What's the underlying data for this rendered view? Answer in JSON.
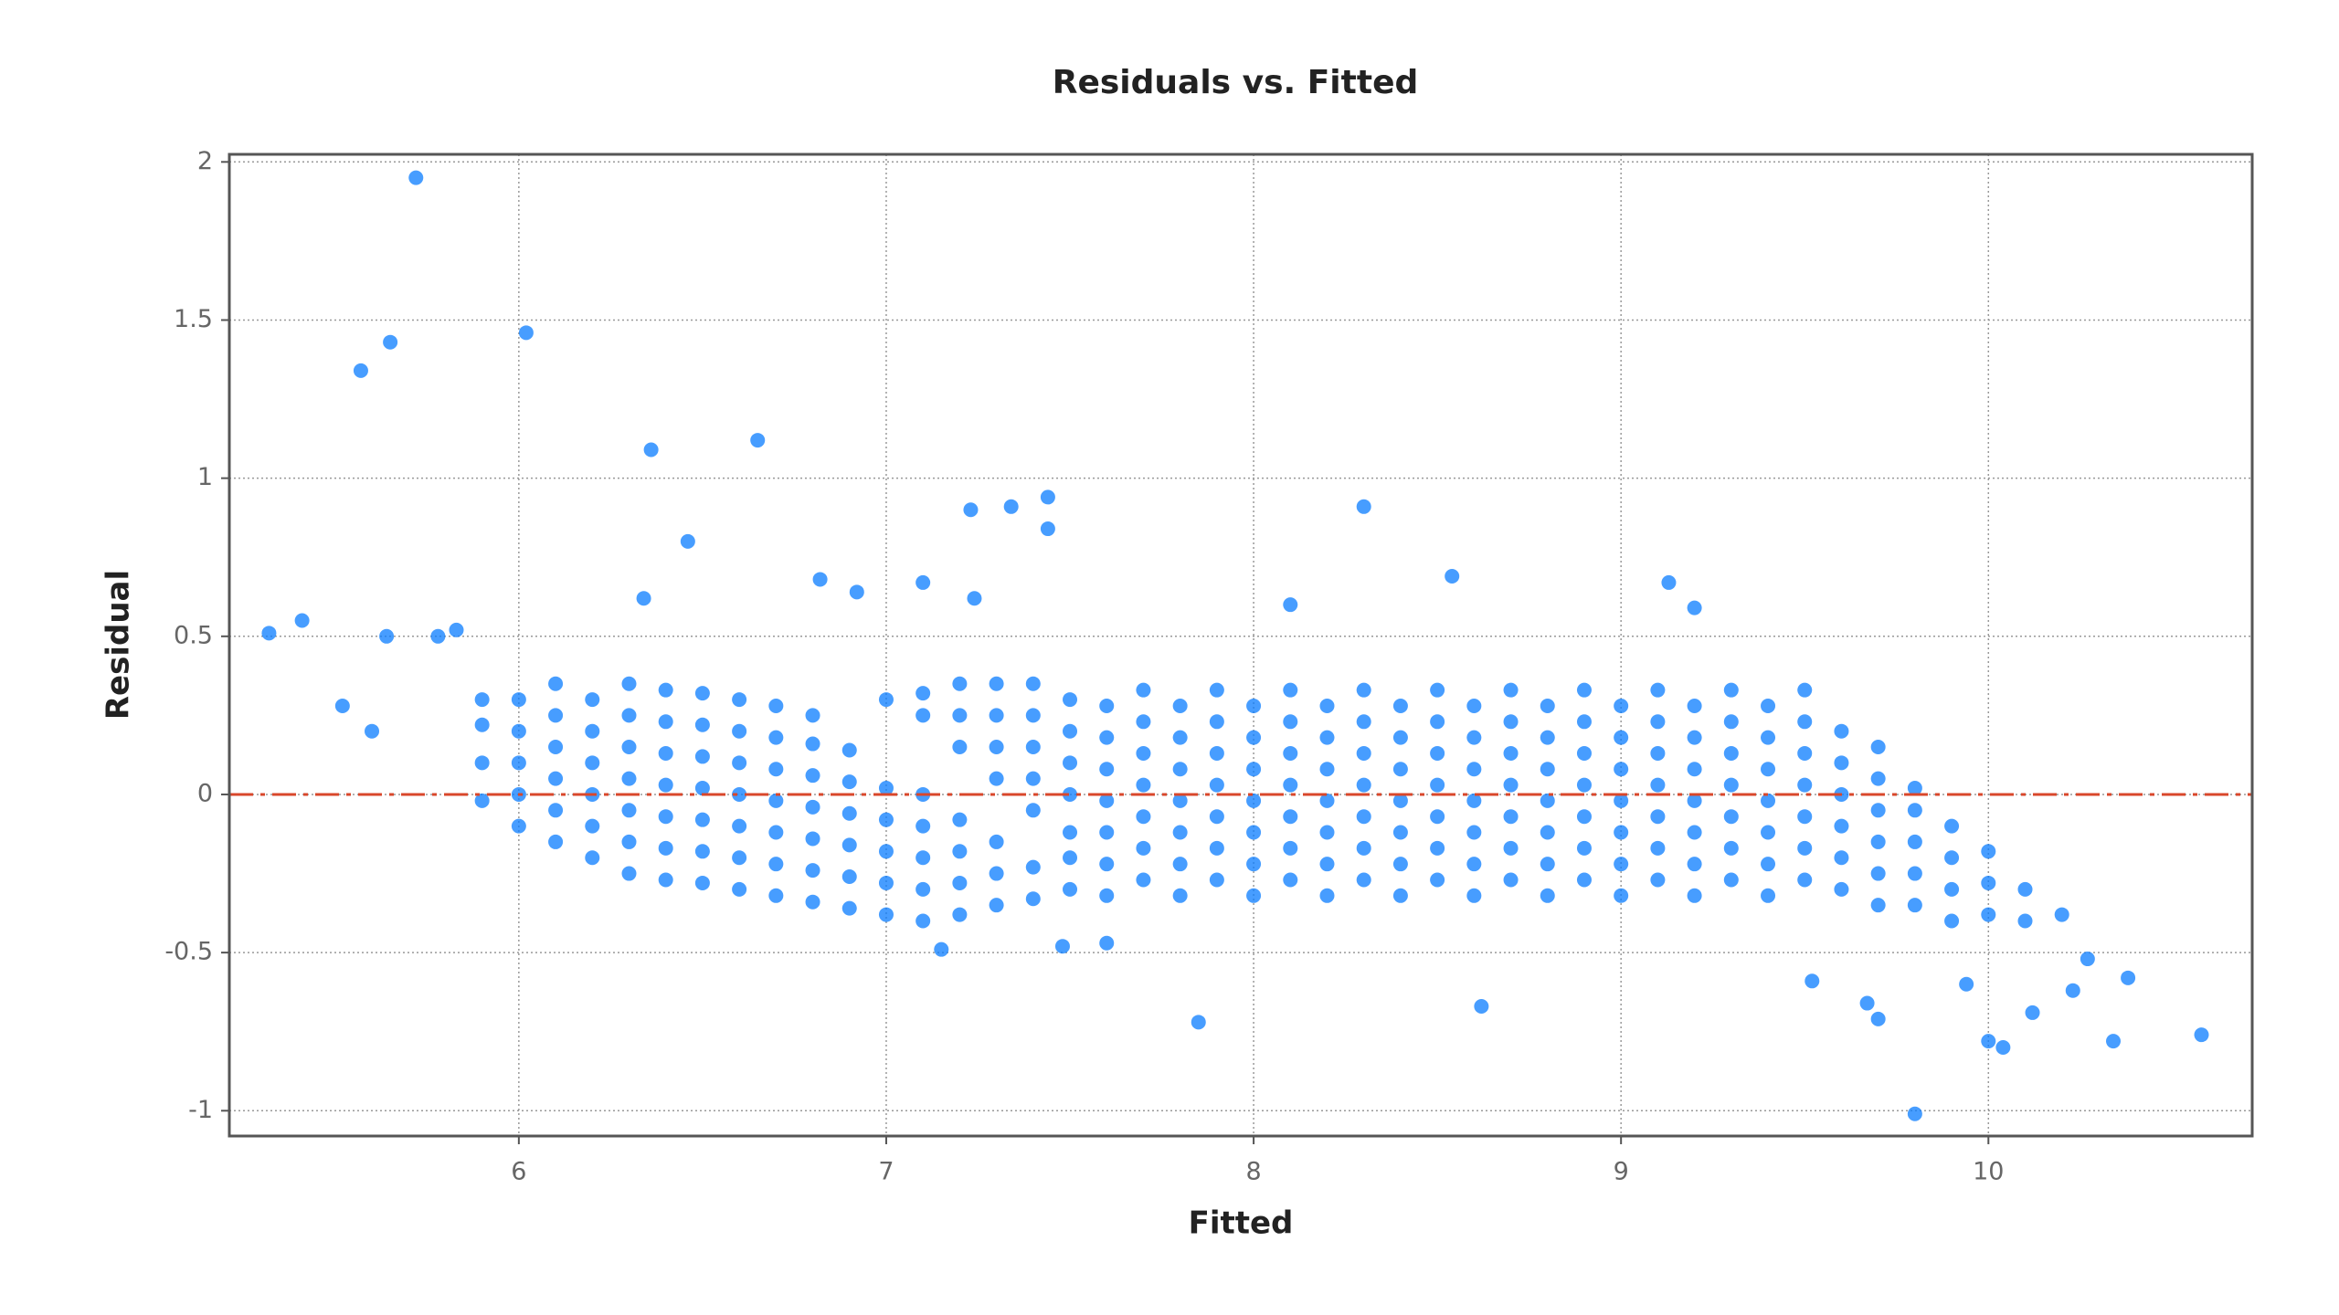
{
  "chart_data": {
    "type": "scatter",
    "title": "Residuals vs. Fitted",
    "x_label": "Fitted",
    "y_label": "Residual",
    "color": "#0a7cff",
    "grid": true,
    "reference_line": {
      "y": 0,
      "color": "#d9472b"
    },
    "xlim": [
      5.212,
      10.718
    ],
    "ylim": [
      -1.08,
      2.024
    ],
    "xticks": [
      6,
      7,
      8,
      9,
      10
    ],
    "yticks": [
      -1,
      -0.5,
      0,
      0.5,
      1,
      1.5,
      2
    ],
    "x": [
      5.32,
      5.41,
      5.57,
      5.65,
      5.72,
      6.02,
      6.36,
      6.65,
      6.46,
      6.34,
      6.82,
      6.92,
      7.1,
      7.23,
      7.34,
      7.44,
      7.44,
      7.24,
      8.3,
      8.54,
      8.1,
      7.85,
      8.62,
      9.13,
      9.2,
      5.52,
      5.6,
      5.64,
      5.78,
      5.83,
      9.8,
      10.58,
      10.34,
      10.38,
      10.0,
      10.04,
      9.67,
      9.7,
      9.52,
      10.23,
      10.27,
      10.12,
      9.94,
      7.15,
      7.48,
      7.6,
      5.9,
      5.9,
      5.9,
      5.9,
      6.0,
      6.0,
      6.0,
      6.0,
      6.0,
      6.1,
      6.1,
      6.1,
      6.1,
      6.1,
      6.1,
      6.2,
      6.2,
      6.2,
      6.2,
      6.2,
      6.2,
      6.3,
      6.3,
      6.3,
      6.3,
      6.3,
      6.3,
      6.3,
      6.4,
      6.4,
      6.4,
      6.4,
      6.4,
      6.4,
      6.4,
      6.5,
      6.5,
      6.5,
      6.5,
      6.5,
      6.5,
      6.5,
      6.6,
      6.6,
      6.6,
      6.6,
      6.6,
      6.6,
      6.6,
      6.7,
      6.7,
      6.7,
      6.7,
      6.7,
      6.7,
      6.7,
      6.8,
      6.8,
      6.8,
      6.8,
      6.8,
      6.8,
      6.8,
      6.9,
      6.9,
      6.9,
      6.9,
      6.9,
      6.9,
      7.0,
      7.0,
      7.0,
      7.0,
      7.0,
      7.0,
      7.1,
      7.1,
      7.1,
      7.1,
      7.1,
      7.1,
      7.1,
      7.2,
      7.2,
      7.2,
      7.2,
      7.2,
      7.2,
      7.2,
      7.3,
      7.3,
      7.3,
      7.3,
      7.3,
      7.3,
      7.3,
      7.4,
      7.4,
      7.4,
      7.4,
      7.4,
      7.4,
      7.4,
      7.5,
      7.5,
      7.5,
      7.5,
      7.5,
      7.5,
      7.5,
      7.6,
      7.6,
      7.6,
      7.6,
      7.6,
      7.6,
      7.6,
      7.7,
      7.7,
      7.7,
      7.7,
      7.7,
      7.7,
      7.7,
      7.8,
      7.8,
      7.8,
      7.8,
      7.8,
      7.8,
      7.8,
      7.9,
      7.9,
      7.9,
      7.9,
      7.9,
      7.9,
      7.9,
      8.0,
      8.0,
      8.0,
      8.0,
      8.0,
      8.0,
      8.0,
      8.1,
      8.1,
      8.1,
      8.1,
      8.1,
      8.1,
      8.1,
      8.2,
      8.2,
      8.2,
      8.2,
      8.2,
      8.2,
      8.2,
      8.3,
      8.3,
      8.3,
      8.3,
      8.3,
      8.3,
      8.3,
      8.4,
      8.4,
      8.4,
      8.4,
      8.4,
      8.4,
      8.4,
      8.5,
      8.5,
      8.5,
      8.5,
      8.5,
      8.5,
      8.5,
      8.6,
      8.6,
      8.6,
      8.6,
      8.6,
      8.6,
      8.6,
      8.7,
      8.7,
      8.7,
      8.7,
      8.7,
      8.7,
      8.7,
      8.8,
      8.8,
      8.8,
      8.8,
      8.8,
      8.8,
      8.8,
      8.9,
      8.9,
      8.9,
      8.9,
      8.9,
      8.9,
      8.9,
      9.0,
      9.0,
      9.0,
      9.0,
      9.0,
      9.0,
      9.0,
      9.1,
      9.1,
      9.1,
      9.1,
      9.1,
      9.1,
      9.1,
      9.2,
      9.2,
      9.2,
      9.2,
      9.2,
      9.2,
      9.2,
      9.3,
      9.3,
      9.3,
      9.3,
      9.3,
      9.3,
      9.3,
      9.4,
      9.4,
      9.4,
      9.4,
      9.4,
      9.4,
      9.4,
      9.5,
      9.5,
      9.5,
      9.5,
      9.5,
      9.5,
      9.5,
      9.6,
      9.6,
      9.6,
      9.6,
      9.6,
      9.6,
      9.7,
      9.7,
      9.7,
      9.7,
      9.7,
      9.7,
      9.8,
      9.8,
      9.8,
      9.8,
      9.8,
      9.9,
      9.9,
      9.9,
      9.9,
      10.0,
      10.0,
      10.0,
      10.1,
      10.1,
      10.2
    ],
    "values": [
      0.51,
      0.55,
      1.34,
      1.43,
      1.95,
      1.46,
      1.09,
      1.12,
      0.8,
      0.62,
      0.68,
      0.64,
      0.67,
      0.9,
      0.91,
      0.94,
      0.84,
      0.62,
      0.91,
      0.69,
      0.6,
      -0.72,
      -0.67,
      0.67,
      0.59,
      0.28,
      0.2,
      0.5,
      0.5,
      0.52,
      -1.01,
      -0.76,
      -0.78,
      -0.58,
      -0.78,
      -0.8,
      -0.66,
      -0.71,
      -0.59,
      -0.62,
      -0.52,
      -0.69,
      -0.6,
      -0.49,
      -0.48,
      -0.47,
      -0.02,
      0.1,
      0.22,
      0.3,
      -0.1,
      0,
      0.1,
      0.2,
      0.3,
      -0.15,
      -0.05,
      0.05,
      0.15,
      0.25,
      0.35,
      -0.2,
      -0.1,
      0,
      0.1,
      0.2,
      0.3,
      -0.25,
      -0.15,
      -0.05,
      0.05,
      0.15,
      0.25,
      0.35,
      -0.27,
      -0.17,
      -0.07,
      0.03,
      0.13,
      0.23,
      0.33,
      -0.28,
      -0.18,
      -0.08,
      0.02,
      0.12,
      0.22,
      0.32,
      -0.3,
      -0.2,
      -0.1,
      0,
      0.1,
      0.2,
      0.3,
      -0.32,
      -0.22,
      -0.12,
      -0.02,
      0.08,
      0.18,
      0.28,
      -0.34,
      -0.24,
      -0.14,
      -0.04,
      0.06,
      0.16,
      0.25,
      -0.36,
      -0.26,
      -0.16,
      -0.06,
      0.04,
      0.14,
      -0.38,
      -0.28,
      -0.18,
      -0.08,
      0.02,
      0.3,
      -0.4,
      -0.3,
      -0.2,
      -0.1,
      0,
      0.25,
      0.32,
      -0.38,
      -0.28,
      -0.18,
      -0.08,
      0.15,
      0.25,
      0.35,
      -0.35,
      -0.25,
      -0.15,
      0.05,
      0.15,
      0.25,
      0.35,
      -0.33,
      -0.23,
      -0.05,
      0.05,
      0.15,
      0.25,
      0.35,
      -0.3,
      -0.2,
      -0.12,
      0,
      0.1,
      0.2,
      0.3,
      -0.32,
      -0.22,
      -0.12,
      -0.02,
      0.08,
      0.18,
      0.28,
      -0.27,
      -0.17,
      -0.07,
      0.03,
      0.13,
      0.23,
      0.33,
      -0.32,
      -0.22,
      -0.12,
      -0.02,
      0.08,
      0.18,
      0.28,
      -0.27,
      -0.17,
      -0.07,
      0.03,
      0.13,
      0.23,
      0.33,
      -0.32,
      -0.22,
      -0.12,
      -0.02,
      0.08,
      0.18,
      0.28,
      -0.27,
      -0.17,
      -0.07,
      0.03,
      0.13,
      0.23,
      0.33,
      -0.32,
      -0.22,
      -0.12,
      -0.02,
      0.08,
      0.18,
      0.28,
      -0.27,
      -0.17,
      -0.07,
      0.03,
      0.13,
      0.23,
      0.33,
      -0.32,
      -0.22,
      -0.12,
      -0.02,
      0.08,
      0.18,
      0.28,
      -0.27,
      -0.17,
      -0.07,
      0.03,
      0.13,
      0.23,
      0.33,
      -0.32,
      -0.22,
      -0.12,
      -0.02,
      0.08,
      0.18,
      0.28,
      -0.27,
      -0.17,
      -0.07,
      0.03,
      0.13,
      0.23,
      0.33,
      -0.32,
      -0.22,
      -0.12,
      -0.02,
      0.08,
      0.18,
      0.28,
      -0.27,
      -0.17,
      -0.07,
      0.03,
      0.13,
      0.23,
      0.33,
      -0.32,
      -0.22,
      -0.12,
      -0.02,
      0.08,
      0.18,
      0.28,
      -0.27,
      -0.17,
      -0.07,
      0.03,
      0.13,
      0.23,
      0.33,
      -0.32,
      -0.22,
      -0.12,
      -0.02,
      0.08,
      0.18,
      0.28,
      -0.27,
      -0.17,
      -0.07,
      0.03,
      0.13,
      0.23,
      0.33,
      -0.32,
      -0.22,
      -0.12,
      -0.02,
      0.08,
      0.18,
      0.28,
      -0.27,
      -0.17,
      -0.07,
      0.03,
      0.13,
      0.23,
      0.33,
      -0.3,
      -0.2,
      -0.1,
      0,
      0.1,
      0.2,
      -0.35,
      -0.25,
      -0.15,
      -0.05,
      0.05,
      0.15,
      -0.35,
      -0.25,
      -0.15,
      -0.05,
      0.02,
      -0.4,
      -0.3,
      -0.2,
      -0.1,
      -0.38,
      -0.28,
      -0.18,
      -0.4,
      -0.3,
      -0.38
    ]
  }
}
